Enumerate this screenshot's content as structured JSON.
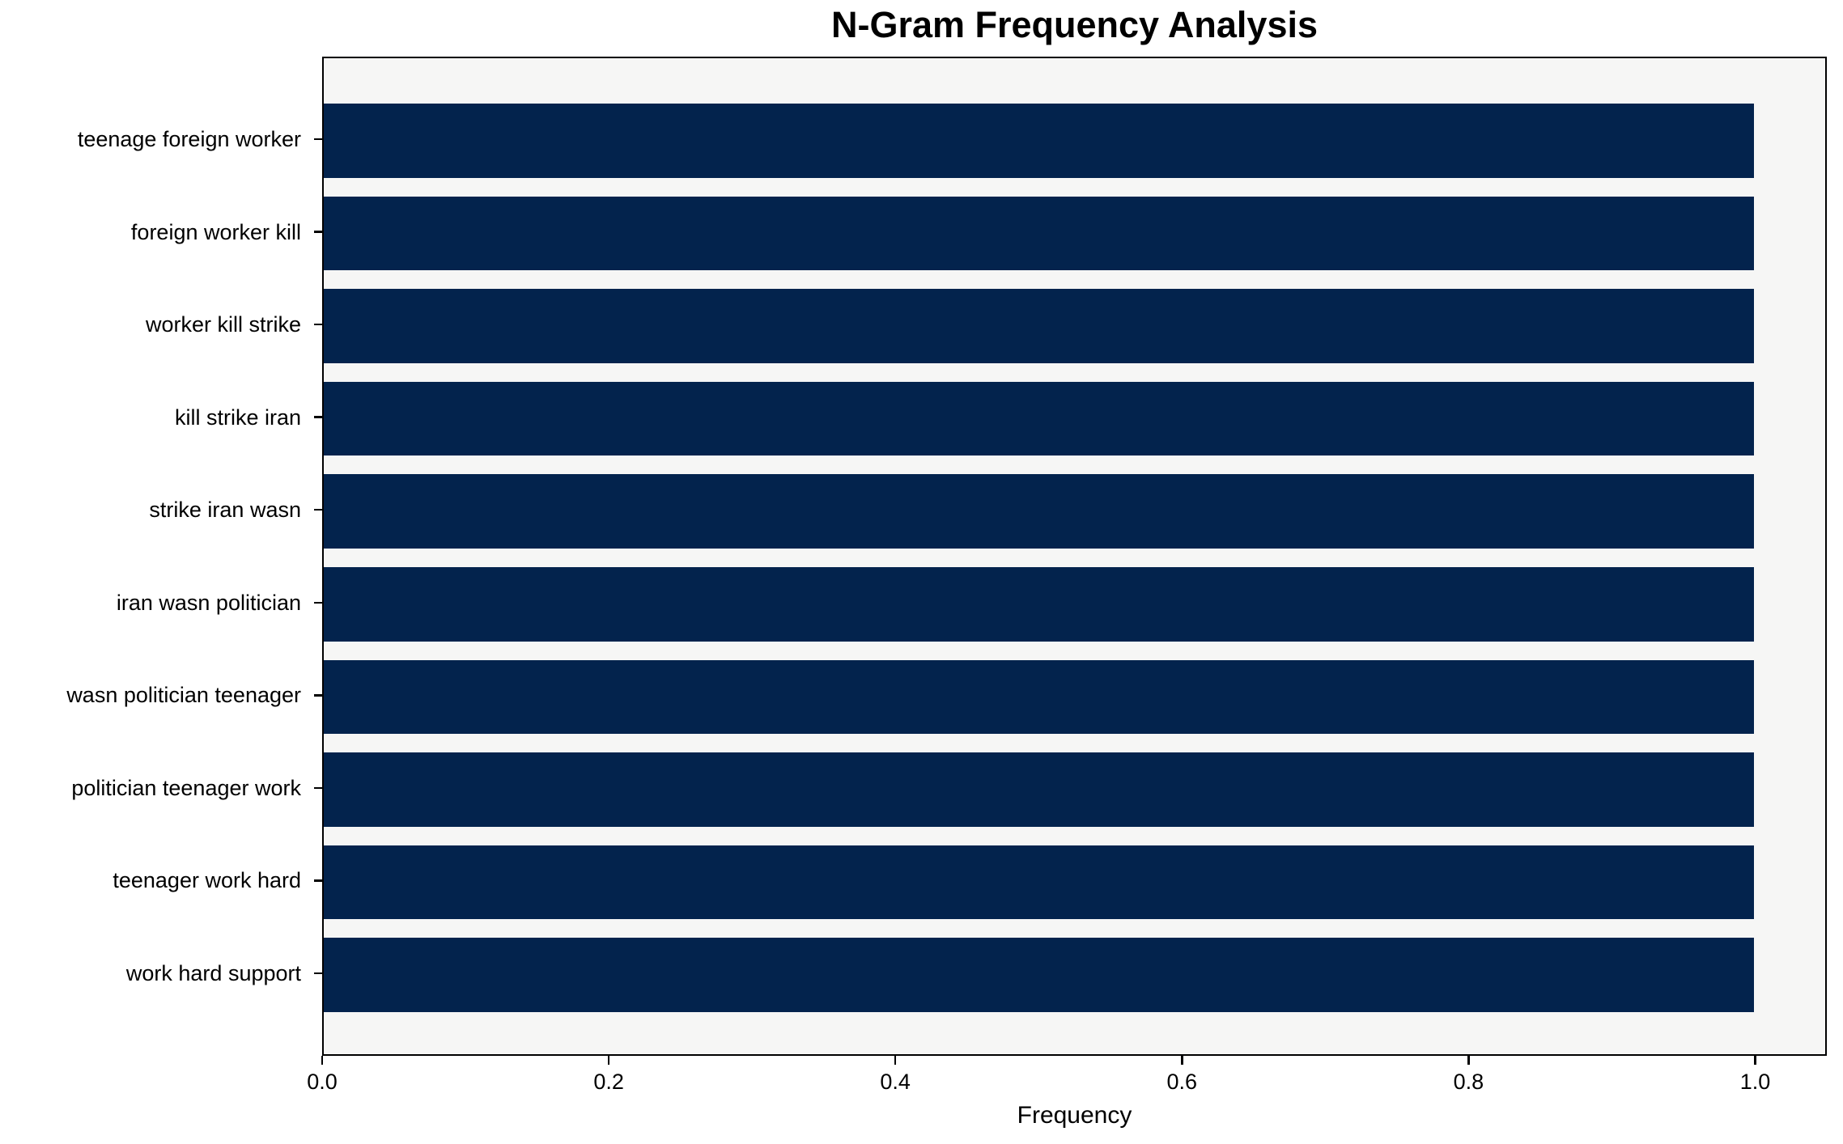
{
  "chart_data": {
    "type": "bar",
    "orientation": "horizontal",
    "title": "N-Gram Frequency Analysis",
    "xlabel": "Frequency",
    "ylabel": "",
    "categories": [
      "teenage foreign worker",
      "foreign worker kill",
      "worker kill strike",
      "kill strike iran",
      "strike iran wasn",
      "iran wasn politician",
      "wasn politician teenager",
      "politician teenager work",
      "teenager work hard",
      "work hard support"
    ],
    "values": [
      1.0,
      1.0,
      1.0,
      1.0,
      1.0,
      1.0,
      1.0,
      1.0,
      1.0,
      1.0
    ],
    "xlim": [
      0,
      1.05
    ],
    "x_ticks": [
      0.0,
      0.2,
      0.4,
      0.6,
      0.8,
      1.0
    ],
    "x_tick_labels": [
      "0.0",
      "0.2",
      "0.4",
      "0.6",
      "0.8",
      "1.0"
    ],
    "bar_height_fraction": 0.8,
    "grid": false,
    "legend_position": "none",
    "colors": {
      "bar": "#03234d",
      "plot_background": "#f6f6f5",
      "figure_background": "#ffffff",
      "spine": "#000000",
      "text": "#000000"
    }
  }
}
